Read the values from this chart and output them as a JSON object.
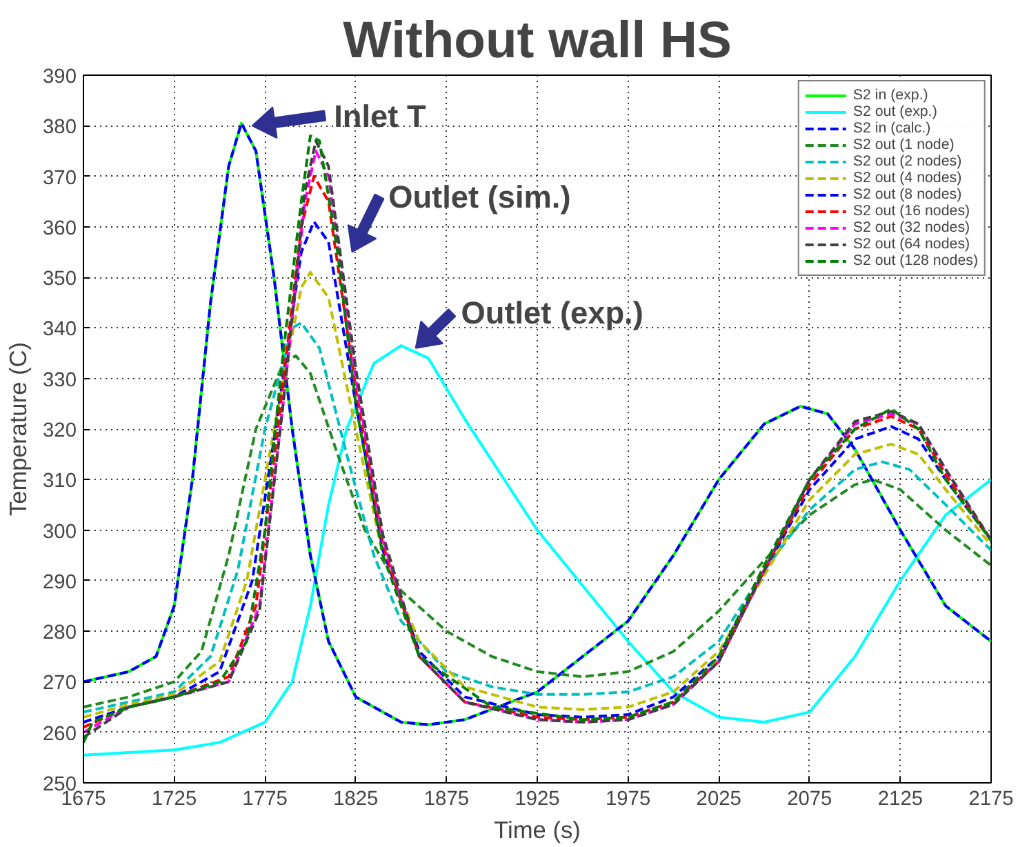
{
  "chart_data": {
    "type": "line",
    "title": "Without wall HS",
    "xlabel": "Time (s)",
    "ylabel": "Temperature (C)",
    "xlim": [
      1675,
      2175
    ],
    "ylim": [
      250,
      390
    ],
    "xticks": [
      1675,
      1725,
      1775,
      1825,
      1875,
      1925,
      1975,
      2025,
      2075,
      2125,
      2175
    ],
    "yticks": [
      250,
      260,
      270,
      280,
      290,
      300,
      310,
      320,
      330,
      340,
      350,
      360,
      370,
      380,
      390
    ],
    "grid": true,
    "legend": "top right",
    "annotations": [
      {
        "text": "Inlet T",
        "x": 1765,
        "y": 380
      },
      {
        "text": "Outlet (sim.)",
        "x": 1820,
        "y": 355
      },
      {
        "text": "Outlet (exp.)",
        "x": 1855,
        "y": 336
      }
    ],
    "series": [
      {
        "name": "S2 in (exp.)",
        "color": "#00ff00",
        "line_style": "solid",
        "x": [
          1675,
          1700,
          1715,
          1725,
          1735,
          1745,
          1755,
          1762,
          1770,
          1780,
          1790,
          1800,
          1810,
          1825,
          1850,
          1865,
          1885,
          1925,
          1975,
          2000,
          2025,
          2050,
          2070,
          2085,
          2100,
          2125,
          2150,
          2175
        ],
        "values": [
          270,
          272,
          275,
          285,
          310,
          345,
          372,
          380.5,
          375,
          350,
          320,
          295,
          278,
          267,
          262,
          261.5,
          262.5,
          268,
          282,
          295,
          310,
          321,
          324.5,
          323,
          316,
          300,
          285,
          278
        ]
      },
      {
        "name": "S2 out (exp.)",
        "color": "#00ffff",
        "line_style": "solid",
        "x": [
          1675,
          1725,
          1750,
          1775,
          1790,
          1800,
          1810,
          1820,
          1835,
          1850,
          1865,
          1885,
          1925,
          1975,
          2000,
          2025,
          2050,
          2075,
          2100,
          2125,
          2150,
          2175
        ],
        "values": [
          255.5,
          256.5,
          258,
          262,
          270,
          285,
          305,
          320,
          333,
          336.5,
          334,
          322,
          300,
          278,
          268,
          263,
          262,
          264,
          275,
          290,
          303,
          310
        ]
      },
      {
        "name": "S2 in (calc.)",
        "color": "#0000ff",
        "line_style": "dashed",
        "x": [
          1675,
          1700,
          1715,
          1725,
          1735,
          1745,
          1755,
          1762,
          1770,
          1780,
          1790,
          1800,
          1810,
          1825,
          1850,
          1865,
          1885,
          1925,
          1975,
          2000,
          2025,
          2050,
          2070,
          2085,
          2100,
          2125,
          2150,
          2175
        ],
        "values": [
          270,
          272,
          275,
          285,
          310,
          345,
          372,
          380.5,
          375,
          350,
          320,
          295,
          278,
          267,
          262,
          261.5,
          262.5,
          268,
          282,
          295,
          310,
          321,
          324.5,
          323,
          316,
          300,
          285,
          278
        ]
      },
      {
        "name": "S2 out (1 node)",
        "color": "#228b22",
        "line_style": "dashed",
        "x": [
          1675,
          1700,
          1725,
          1740,
          1755,
          1770,
          1785,
          1792,
          1800,
          1815,
          1830,
          1850,
          1875,
          1900,
          1925,
          1950,
          1975,
          2000,
          2025,
          2050,
          2075,
          2100,
          2110,
          2125,
          2150,
          2175
        ],
        "values": [
          265,
          267,
          270,
          276,
          295,
          320,
          333,
          334.5,
          331,
          315,
          300,
          288,
          280,
          275,
          272,
          271,
          272,
          276,
          284,
          294,
          303,
          309,
          310,
          308,
          300,
          293
        ]
      },
      {
        "name": "S2 out (2 nodes)",
        "color": "#00bfbf",
        "line_style": "dashed",
        "x": [
          1675,
          1700,
          1725,
          1745,
          1760,
          1775,
          1790,
          1795,
          1805,
          1820,
          1835,
          1850,
          1875,
          1900,
          1925,
          1950,
          1975,
          2000,
          2025,
          2050,
          2075,
          2100,
          2115,
          2130,
          2150,
          2175
        ],
        "values": [
          264,
          266,
          268,
          275,
          292,
          320,
          340,
          341,
          336,
          315,
          295,
          282,
          272,
          269,
          267.5,
          267.5,
          268,
          271,
          278,
          292,
          304,
          312,
          313.5,
          312,
          305,
          296
        ]
      },
      {
        "name": "S2 out (4 nodes)",
        "color": "#bfbf00",
        "line_style": "dashed",
        "x": [
          1675,
          1700,
          1725,
          1750,
          1765,
          1780,
          1795,
          1800,
          1810,
          1825,
          1840,
          1860,
          1885,
          1925,
          1950,
          1975,
          2000,
          2025,
          2050,
          2075,
          2100,
          2120,
          2135,
          2150,
          2175
        ],
        "values": [
          263,
          265.5,
          267.5,
          274,
          290,
          320,
          348,
          351,
          346,
          320,
          295,
          278,
          269,
          265,
          264.5,
          265,
          268,
          276,
          291,
          306,
          315,
          317,
          315,
          308,
          297
        ]
      },
      {
        "name": "S2 out (8 nodes)",
        "color": "#0000ff",
        "line_style": "dashed",
        "x": [
          1675,
          1700,
          1725,
          1750,
          1768,
          1780,
          1795,
          1802,
          1810,
          1825,
          1840,
          1860,
          1885,
          1925,
          1950,
          1975,
          2000,
          2025,
          2050,
          2075,
          2100,
          2120,
          2135,
          2150,
          2175
        ],
        "values": [
          262,
          265,
          267,
          272,
          290,
          318,
          355,
          361,
          357,
          325,
          296,
          276,
          267,
          263.5,
          263,
          263.5,
          267,
          275,
          292,
          308,
          318,
          320.5,
          318,
          310,
          298
        ]
      },
      {
        "name": "S2 out (16 nodes)",
        "color": "#ff0000",
        "line_style": "dashed",
        "x": [
          1675,
          1700,
          1725,
          1755,
          1770,
          1782,
          1795,
          1802,
          1810,
          1825,
          1840,
          1860,
          1885,
          1925,
          1950,
          1975,
          2000,
          2025,
          2050,
          2075,
          2100,
          2120,
          2135,
          2150,
          2175
        ],
        "values": [
          261,
          265,
          267,
          271,
          285,
          320,
          360,
          370,
          365,
          328,
          297,
          275,
          266,
          263,
          262.5,
          263,
          266,
          274,
          292,
          309,
          320,
          322.5,
          320,
          311,
          298
        ]
      },
      {
        "name": "S2 out (32 nodes)",
        "color": "#ff00ff",
        "line_style": "dashed",
        "x": [
          1675,
          1700,
          1725,
          1755,
          1772,
          1785,
          1797,
          1803,
          1810,
          1825,
          1840,
          1860,
          1885,
          1925,
          1950,
          1975,
          2000,
          2025,
          2050,
          2075,
          2100,
          2120,
          2135,
          2150,
          2175
        ],
        "values": [
          260,
          265,
          267,
          270,
          285,
          325,
          365,
          375,
          370,
          330,
          298,
          275,
          266,
          262.5,
          262,
          262.5,
          265.5,
          274,
          292,
          310,
          321,
          323,
          321,
          312,
          298
        ]
      },
      {
        "name": "S2 out (64 nodes)",
        "color": "#404040",
        "line_style": "dashed",
        "x": [
          1675,
          1700,
          1725,
          1755,
          1772,
          1785,
          1797,
          1803,
          1810,
          1825,
          1840,
          1860,
          1885,
          1925,
          1950,
          1975,
          2000,
          2025,
          2050,
          2075,
          2100,
          2120,
          2135,
          2150,
          2175
        ],
        "values": [
          259,
          265,
          267,
          270,
          284,
          325,
          367,
          377,
          372,
          332,
          299,
          275,
          266,
          262.5,
          262,
          262.5,
          265.5,
          274,
          292,
          310,
          321.5,
          323.5,
          321,
          312,
          298
        ]
      },
      {
        "name": "S2 out (128 nodes)",
        "color": "#008000",
        "line_style": "dashed",
        "x": [
          1675,
          1680,
          1700,
          1725,
          1750,
          1765,
          1775,
          1785,
          1795,
          1800,
          1805,
          1815,
          1825,
          1840,
          1860,
          1900,
          1950,
          1975,
          2000,
          2025,
          2050,
          2075,
          2100,
          2120,
          2135,
          2150,
          2175
        ],
        "values": [
          258,
          262,
          265,
          267,
          270,
          278,
          300,
          335,
          365,
          378,
          377,
          355,
          325,
          295,
          275,
          265,
          262.5,
          263,
          266,
          275,
          293,
          310,
          320,
          324,
          320,
          310,
          298
        ]
      }
    ]
  }
}
